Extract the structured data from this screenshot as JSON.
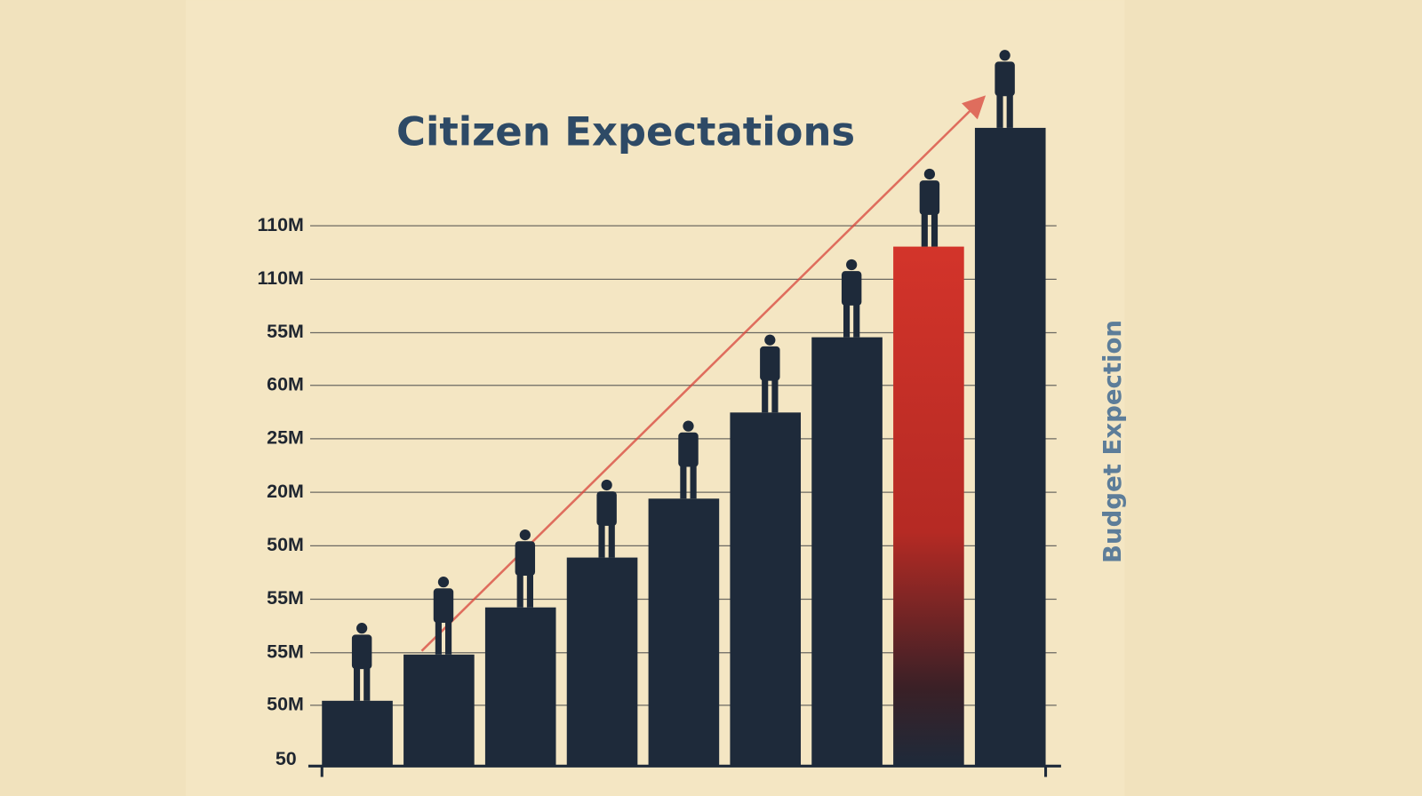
{
  "title": "Citizen Expectations",
  "axis_label": "Budget Expection",
  "tick_labels": [
    "50",
    "50M",
    "55M",
    "55M",
    "50M",
    "20M",
    "25M",
    "60M",
    "55M",
    "110M",
    "110M"
  ]
}
